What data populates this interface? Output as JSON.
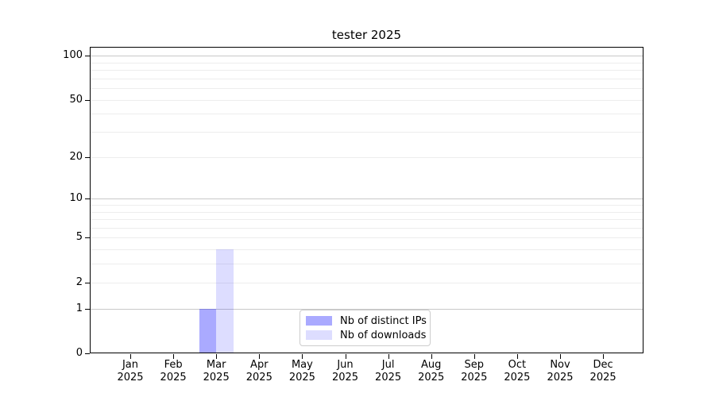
{
  "chart_data": {
    "type": "bar",
    "title": "tester 2025",
    "x_ticks": [
      {
        "month": "Jan",
        "year": "2025"
      },
      {
        "month": "Feb",
        "year": "2025"
      },
      {
        "month": "Mar",
        "year": "2025"
      },
      {
        "month": "Apr",
        "year": "2025"
      },
      {
        "month": "May",
        "year": "2025"
      },
      {
        "month": "Jun",
        "year": "2025"
      },
      {
        "month": "Jul",
        "year": "2025"
      },
      {
        "month": "Aug",
        "year": "2025"
      },
      {
        "month": "Sep",
        "year": "2025"
      },
      {
        "month": "Oct",
        "year": "2025"
      },
      {
        "month": "Nov",
        "year": "2025"
      },
      {
        "month": "Dec",
        "year": "2025"
      }
    ],
    "series": [
      {
        "name": "Nb of distinct IPs",
        "color": "#0000ff55",
        "values": [
          0,
          0,
          1,
          0,
          0,
          0,
          0,
          0,
          0,
          0,
          0,
          0
        ]
      },
      {
        "name": "Nb of downloads",
        "color": "#0000ff22",
        "values": [
          0,
          0,
          4,
          0,
          0,
          0,
          0,
          0,
          0,
          0,
          0,
          0
        ]
      }
    ],
    "y_axis": {
      "scale": "log1p",
      "tick_values": [
        0,
        1,
        2,
        5,
        10,
        20,
        50,
        100
      ],
      "tick_labels": [
        "0",
        "1",
        "2",
        "5",
        "10",
        "20",
        "50",
        "100"
      ],
      "major_gridlines": [
        1,
        10,
        100
      ],
      "minor_gridlines": [
        2,
        3,
        4,
        5,
        6,
        7,
        8,
        9,
        20,
        30,
        40,
        50,
        60,
        70,
        80,
        90
      ],
      "ylim": [
        0,
        115
      ]
    },
    "legend": {
      "position": "lower-center",
      "entries": [
        {
          "label": "Nb of distinct IPs",
          "color": "#0000ff55"
        },
        {
          "label": "Nb of downloads",
          "color": "#0000ff22"
        }
      ]
    },
    "grid": {
      "minor_color": "#ededed",
      "major_color": "#c8c8c8"
    },
    "colors": {
      "axis": "#000000",
      "background": "#ffffff"
    }
  }
}
